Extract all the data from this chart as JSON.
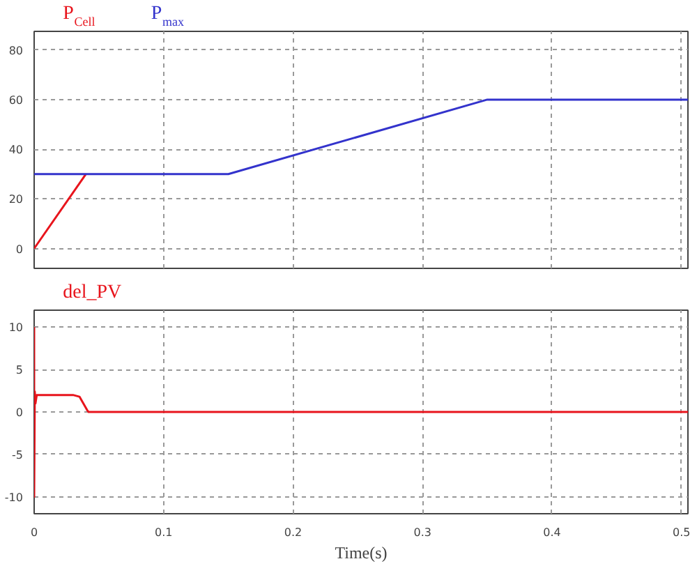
{
  "chart_data": [
    {
      "type": "line",
      "xlim": [
        0,
        0.505
      ],
      "ylim": [
        -8,
        87.5
      ],
      "xticks": [
        0,
        0.1,
        0.2,
        0.3,
        0.4,
        0.5
      ],
      "yticks": [
        0,
        20,
        40,
        60,
        80
      ],
      "tick_labels": "y",
      "grid": true,
      "line_style": "solid",
      "series": [
        {
          "name": "P$_{Cell}$",
          "color": "#e8141c",
          "x": [
            0,
            0.04
          ],
          "values": [
            0,
            30
          ]
        },
        {
          "name": "P$_{max}$",
          "color": "#3333cc",
          "x": [
            0,
            0.15,
            0.35,
            0.505
          ],
          "values": [
            30,
            30,
            60,
            60
          ]
        }
      ]
    },
    {
      "type": "line",
      "xlabel": "Time(s)",
      "xlim": [
        0,
        0.505
      ],
      "ylim": [
        -12,
        12
      ],
      "xticks": [
        0,
        0.1,
        0.2,
        0.3,
        0.4,
        0.5
      ],
      "yticks": [
        -10,
        -5,
        0,
        5,
        10
      ],
      "grid": true,
      "line_style": "solid",
      "series": [
        {
          "name": "del_PV",
          "color": "#e8141c",
          "x": [
            0,
            0,
            0.0005,
            0.001,
            0.002,
            0.03,
            0.035,
            0.038,
            0.041,
            0.042,
            0.505
          ],
          "values": [
            10,
            -10,
            2.4,
            1,
            2,
            2,
            1.8,
            1,
            0.2,
            0,
            0
          ]
        }
      ]
    }
  ]
}
